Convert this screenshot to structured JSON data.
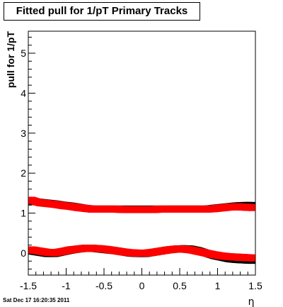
{
  "title": "Fitted pull for 1/pT  Primary Tracks",
  "footer": "Sat Dec 17 16:20:35 2011",
  "chart_data": {
    "type": "scatter",
    "title": "Fitted pull for 1/pT  Primary Tracks",
    "xlabel": "η",
    "ylabel": "pull for 1/pT",
    "xlim": [
      -1.5,
      1.5
    ],
    "ylim": [
      -0.55,
      5.55
    ],
    "xticks": [
      -1.5,
      -1,
      -0.5,
      0,
      0.5,
      1,
      1.5
    ],
    "xtick_labels": [
      "-1.5",
      "-1",
      "-0.5",
      "0",
      "0.5",
      "1",
      "1.5"
    ],
    "yticks": [
      0,
      1,
      2,
      3,
      4,
      5
    ],
    "ytick_labels": [
      "0",
      "1",
      "2",
      "3",
      "4",
      "5"
    ],
    "grid": false,
    "series": [
      {
        "color": "#000000",
        "x": [
          -1.45,
          -1.35,
          -1.25,
          -1.15,
          -1.05,
          -0.95,
          -0.85,
          -0.75,
          -0.65,
          -0.55,
          -0.45,
          -0.35,
          -0.25,
          -0.15,
          -0.05,
          0.05,
          0.15,
          0.25,
          0.35,
          0.45,
          0.55,
          0.65,
          0.75,
          0.85,
          0.95,
          1.05,
          1.15,
          1.25,
          1.35,
          1.45
        ],
        "y": [
          1.3,
          1.27,
          1.25,
          1.23,
          1.2,
          1.18,
          1.15,
          1.12,
          1.1,
          1.1,
          1.1,
          1.1,
          1.1,
          1.1,
          1.1,
          1.1,
          1.1,
          1.1,
          1.1,
          1.1,
          1.1,
          1.1,
          1.1,
          1.1,
          1.12,
          1.14,
          1.16,
          1.18,
          1.19,
          1.19
        ]
      },
      {
        "color": "#ff0000",
        "x": [
          -1.45,
          -1.35,
          -1.25,
          -1.15,
          -1.05,
          -0.95,
          -0.85,
          -0.75,
          -0.65,
          -0.55,
          -0.45,
          -0.35,
          -0.25,
          -0.15,
          -0.05,
          0.05,
          0.15,
          0.25,
          0.35,
          0.45,
          0.55,
          0.65,
          0.75,
          0.85,
          0.95,
          1.05,
          1.15,
          1.25,
          1.35,
          1.45
        ],
        "y": [
          1.32,
          1.26,
          1.24,
          1.22,
          1.19,
          1.17,
          1.14,
          1.12,
          1.1,
          1.1,
          1.1,
          1.1,
          1.09,
          1.09,
          1.09,
          1.09,
          1.09,
          1.1,
          1.1,
          1.1,
          1.1,
          1.1,
          1.1,
          1.1,
          1.11,
          1.13,
          1.15,
          1.16,
          1.15,
          1.14
        ]
      },
      {
        "color": "#000000",
        "x": [
          -1.45,
          -1.35,
          -1.25,
          -1.15,
          -1.05,
          -0.95,
          -0.85,
          -0.75,
          -0.65,
          -0.55,
          -0.45,
          -0.35,
          -0.25,
          -0.15,
          -0.05,
          0.05,
          0.15,
          0.25,
          0.35,
          0.45,
          0.55,
          0.65,
          0.75,
          0.85,
          0.95,
          1.05,
          1.15,
          1.25,
          1.35,
          1.45
        ],
        "y": [
          0.05,
          0.02,
          -0.01,
          -0.01,
          0.03,
          0.07,
          0.1,
          0.12,
          0.12,
          0.1,
          0.08,
          0.06,
          0.03,
          0.0,
          -0.01,
          -0.01,
          0.02,
          0.05,
          0.08,
          0.1,
          0.11,
          0.1,
          0.06,
          0.0,
          -0.06,
          -0.1,
          -0.14,
          -0.16,
          -0.17,
          -0.18
        ]
      },
      {
        "color": "#ff0000",
        "x": [
          -1.45,
          -1.35,
          -1.25,
          -1.15,
          -1.05,
          -0.95,
          -0.85,
          -0.75,
          -0.65,
          -0.55,
          -0.45,
          -0.35,
          -0.25,
          -0.15,
          -0.05,
          0.05,
          0.15,
          0.25,
          0.35,
          0.45,
          0.55,
          0.65,
          0.75,
          0.85,
          0.95,
          1.05,
          1.15,
          1.25,
          1.35,
          1.45
        ],
        "y": [
          0.08,
          0.05,
          0.02,
          0.01,
          0.04,
          0.08,
          0.1,
          0.12,
          0.12,
          0.11,
          0.09,
          0.06,
          0.03,
          0.01,
          0.0,
          0.0,
          0.02,
          0.05,
          0.08,
          0.1,
          0.1,
          0.08,
          0.04,
          0.0,
          -0.04,
          -0.07,
          -0.09,
          -0.1,
          -0.11,
          -0.12
        ]
      }
    ]
  }
}
